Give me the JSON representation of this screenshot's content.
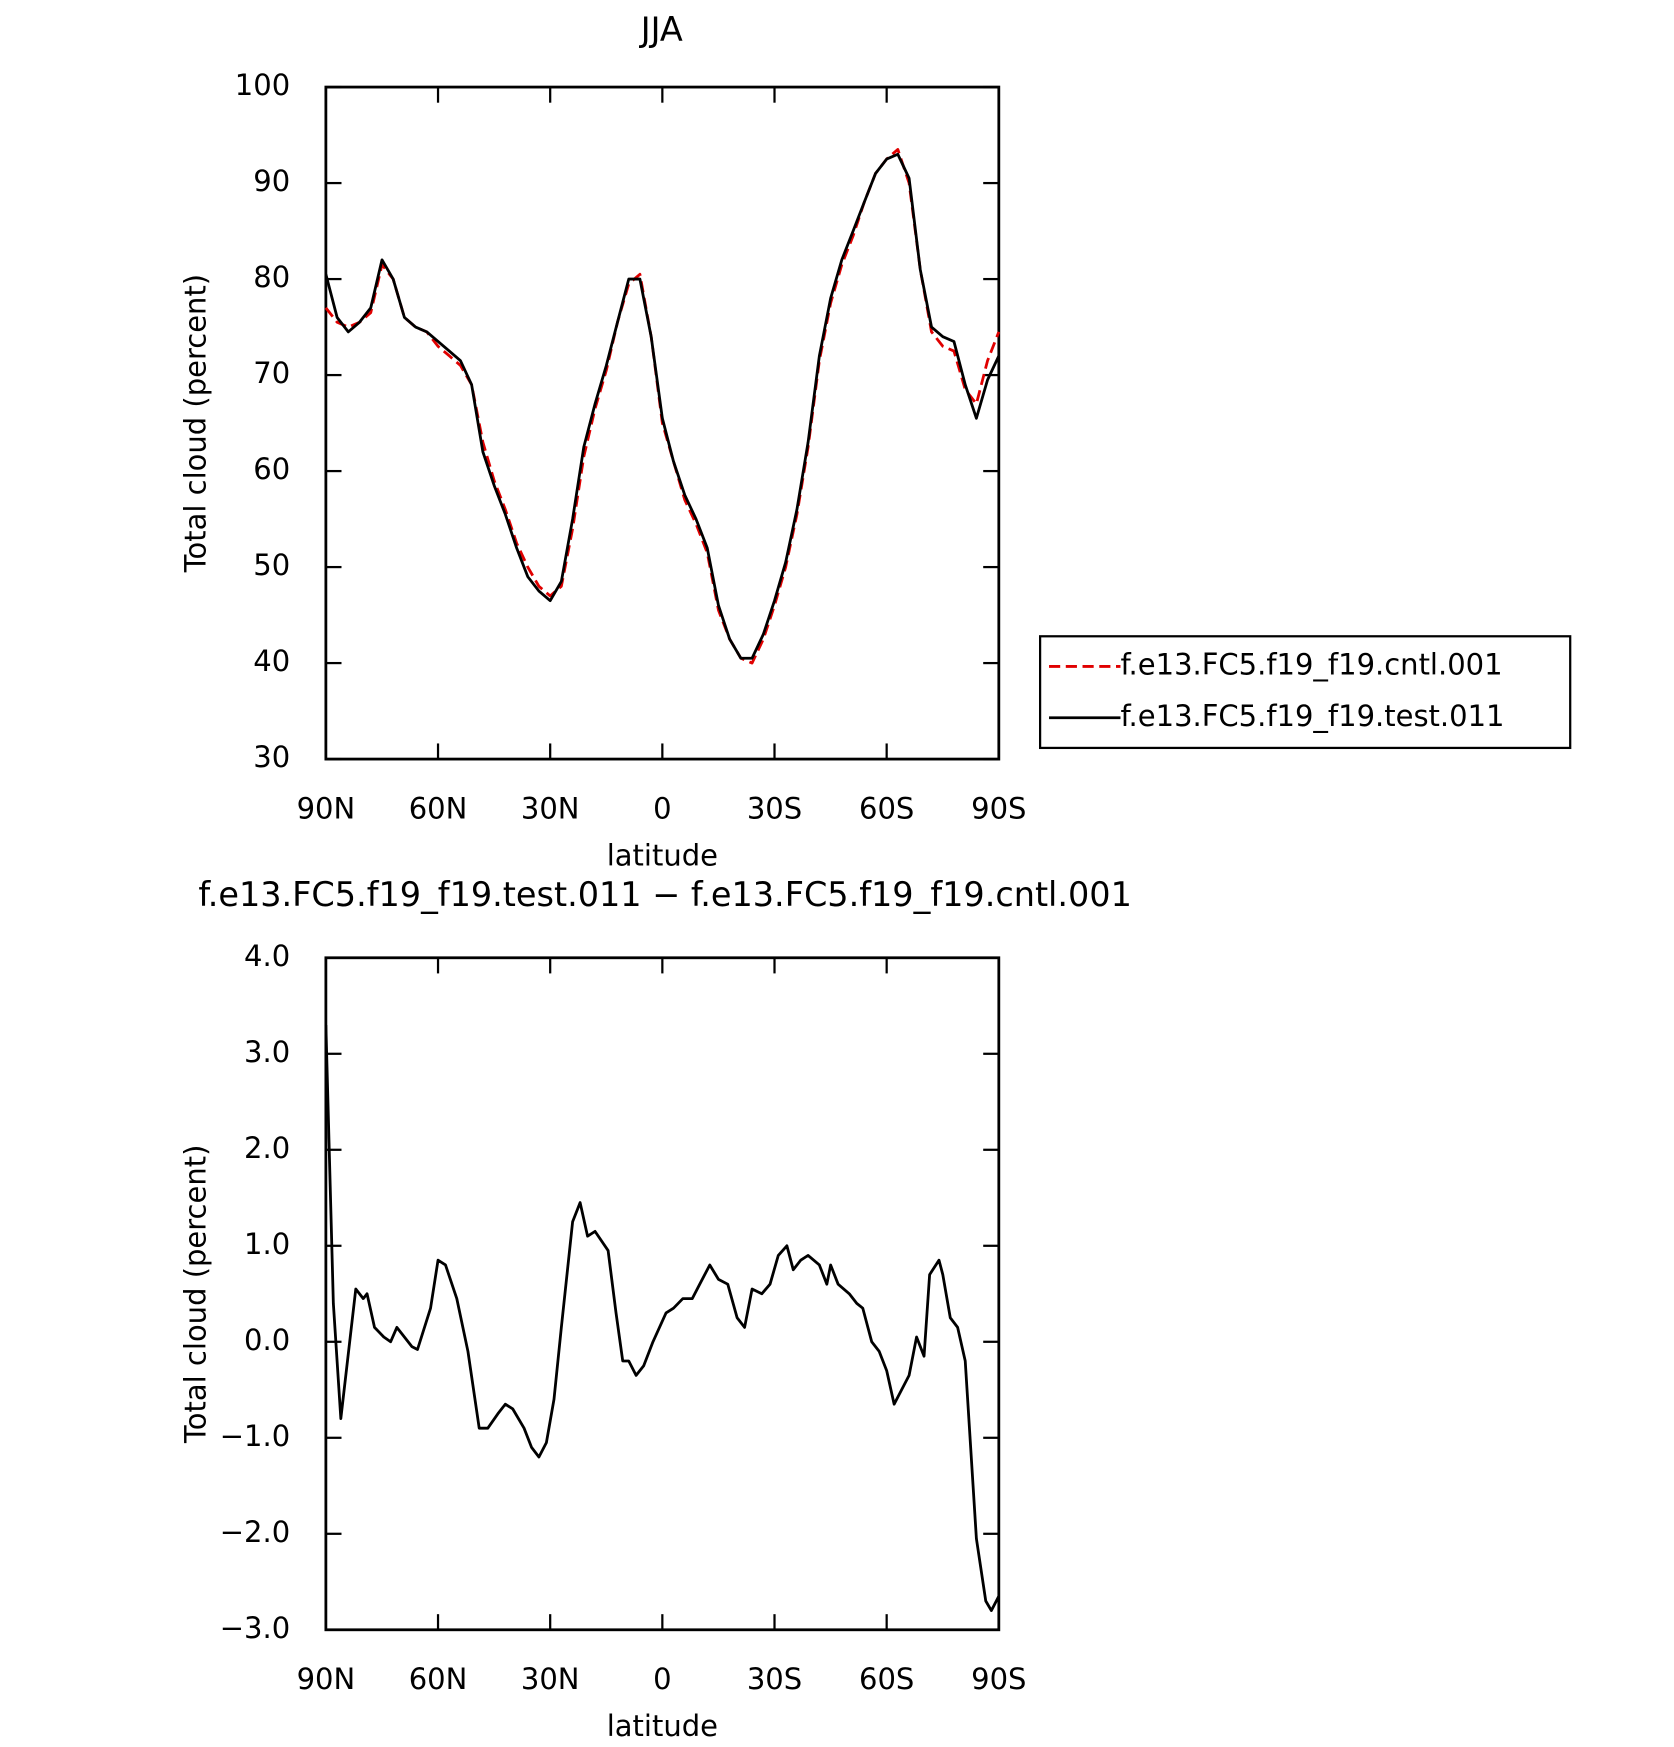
{
  "chart_data": [
    {
      "type": "line",
      "title": "JJA",
      "xlabel": "latitude",
      "ylabel": "Total cloud (percent)",
      "legend": "right",
      "x": [
        90,
        87,
        84,
        81,
        78,
        75,
        72,
        69,
        66,
        63,
        60,
        57,
        54,
        51,
        48,
        45,
        42,
        39,
        36,
        33,
        30,
        27,
        24,
        21,
        18,
        15,
        12,
        9,
        6,
        3,
        0,
        -3,
        -6,
        -9,
        -12,
        -15,
        -18,
        -21,
        -24,
        -27,
        -30,
        -33,
        -36,
        -39,
        -42,
        -45,
        -48,
        -51,
        -54,
        -57,
        -60,
        -63,
        -66,
        -69,
        -72,
        -75,
        -78,
        -81,
        -84,
        -87,
        -90
      ],
      "series": [
        {
          "name": "f.e13.FC5.f19_f19.cntl.001",
          "color": "#e00000",
          "dash": true,
          "values": [
            77,
            75.5,
            75,
            75.5,
            76.5,
            81.5,
            80,
            76,
            75,
            74.5,
            73,
            72,
            71,
            69,
            63,
            59,
            56,
            52.5,
            50,
            48,
            47,
            48,
            54,
            61.5,
            66.5,
            70.5,
            75.5,
            79.5,
            80.5,
            74,
            65,
            61,
            57,
            54.5,
            51.5,
            45.5,
            42.5,
            40.5,
            40,
            42.5,
            46,
            50,
            55.5,
            62.5,
            71.5,
            77.5,
            81.5,
            84.5,
            88,
            91,
            92.5,
            93.5,
            90,
            81,
            74.5,
            73,
            72.5,
            68.5,
            67,
            71.5,
            74.5
          ]
        },
        {
          "name": "f.e13.FC5.f19_f19.test.011",
          "color": "#000000",
          "dash": false,
          "values": [
            80.5,
            76,
            74.5,
            75.5,
            77,
            82,
            80,
            76,
            75,
            74.5,
            73.5,
            72.5,
            71.5,
            69,
            62,
            58.5,
            55.5,
            52,
            49,
            47.5,
            46.5,
            48.5,
            55,
            62.5,
            67,
            71,
            75.5,
            80,
            80,
            74,
            65.5,
            61,
            57.5,
            55,
            52,
            46,
            42.5,
            40.5,
            40.5,
            43,
            46.5,
            50.5,
            56,
            63,
            72,
            78,
            82,
            85,
            88,
            91,
            92.5,
            93,
            90.5,
            81,
            75,
            74,
            73.5,
            69,
            65.5,
            69.5,
            72
          ]
        }
      ],
      "xlim": [
        90,
        -90
      ],
      "xticks": [
        {
          "value": 90,
          "label": "90N"
        },
        {
          "value": 60,
          "label": "60N"
        },
        {
          "value": 30,
          "label": "30N"
        },
        0,
        {
          "value": -30,
          "label": "30S"
        },
        {
          "value": -60,
          "label": "60S"
        },
        {
          "value": -90,
          "label": "90S"
        }
      ],
      "ylim": [
        30,
        100
      ],
      "yticks": [
        30,
        40,
        50,
        60,
        70,
        80,
        90,
        100
      ]
    },
    {
      "type": "line",
      "title": "f.e13.FC5.f19_f19.test.011 − f.e13.FC5.f19_f19.cntl.001",
      "xlabel": "latitude",
      "ylabel": "Total cloud (percent)",
      "x": [
        90,
        88,
        86,
        82,
        80,
        79,
        77,
        74.5,
        72.7,
        71,
        67,
        65.5,
        62,
        60,
        58,
        55,
        52,
        49,
        46.7,
        44,
        42,
        40,
        37,
        35,
        33,
        31,
        29,
        27,
        24,
        22,
        20,
        18,
        14.5,
        12.4,
        10.6,
        9,
        7,
        5,
        2.5,
        -1,
        -3,
        -5.5,
        -8,
        -10,
        -12.7,
        -15,
        -17.5,
        -20,
        -22,
        -24,
        -26.6,
        -28.8,
        -31,
        -33.3,
        -35,
        -37,
        -39,
        -42,
        -44,
        -45,
        -47,
        -50,
        -52,
        -53.6,
        -56,
        -58,
        -60,
        -62,
        -66,
        -68,
        -70,
        -71.5,
        -74,
        -75,
        -77,
        -79,
        -81,
        -84,
        -86.5,
        -88,
        -90
      ],
      "color": "#000000",
      "values": [
        3.3,
        0.4,
        -0.8,
        0.55,
        0.45,
        0.5,
        0.15,
        0.05,
        0,
        0.15,
        -0.05,
        -0.08,
        0.35,
        0.85,
        0.8,
        0.45,
        -0.1,
        -0.9,
        -0.9,
        -0.75,
        -0.65,
        -0.7,
        -0.9,
        -1.1,
        -1.2,
        -1.05,
        -0.6,
        0.15,
        1.25,
        1.45,
        1.1,
        1.15,
        0.95,
        0.3,
        -0.2,
        -0.2,
        -0.35,
        -0.25,
        0,
        0.3,
        0.35,
        0.45,
        0.45,
        0.6,
        0.8,
        0.65,
        0.6,
        0.25,
        0.15,
        0.55,
        0.5,
        0.6,
        0.9,
        1,
        0.75,
        0.85,
        0.9,
        0.8,
        0.6,
        0.8,
        0.6,
        0.5,
        0.4,
        0.35,
        0,
        -0.1,
        -0.3,
        -0.65,
        -0.35,
        0.05,
        -0.15,
        0.7,
        0.85,
        0.7,
        0.25,
        0.15,
        -0.2,
        -2.05,
        -2.7,
        -2.8,
        -2.65
      ],
      "xlim": [
        90,
        -90
      ],
      "xticks": [
        {
          "value": 90,
          "label": "90N"
        },
        {
          "value": 60,
          "label": "60N"
        },
        {
          "value": 30,
          "label": "30N"
        },
        0,
        {
          "value": -30,
          "label": "30S"
        },
        {
          "value": -60,
          "label": "60S"
        },
        {
          "value": -90,
          "label": "90S"
        }
      ],
      "ylim": [
        -3,
        4
      ],
      "yticks": [
        {
          "value": -3,
          "label": "−3.0"
        },
        {
          "value": -2,
          "label": "−2.0"
        },
        {
          "value": -1,
          "label": "−1.0"
        },
        {
          "value": 0,
          "label": "0.0"
        },
        {
          "value": 1,
          "label": "1.0"
        },
        {
          "value": 2,
          "label": "2.0"
        },
        {
          "value": 3,
          "label": "3.0"
        },
        {
          "value": 4,
          "label": "4.0"
        }
      ]
    }
  ]
}
